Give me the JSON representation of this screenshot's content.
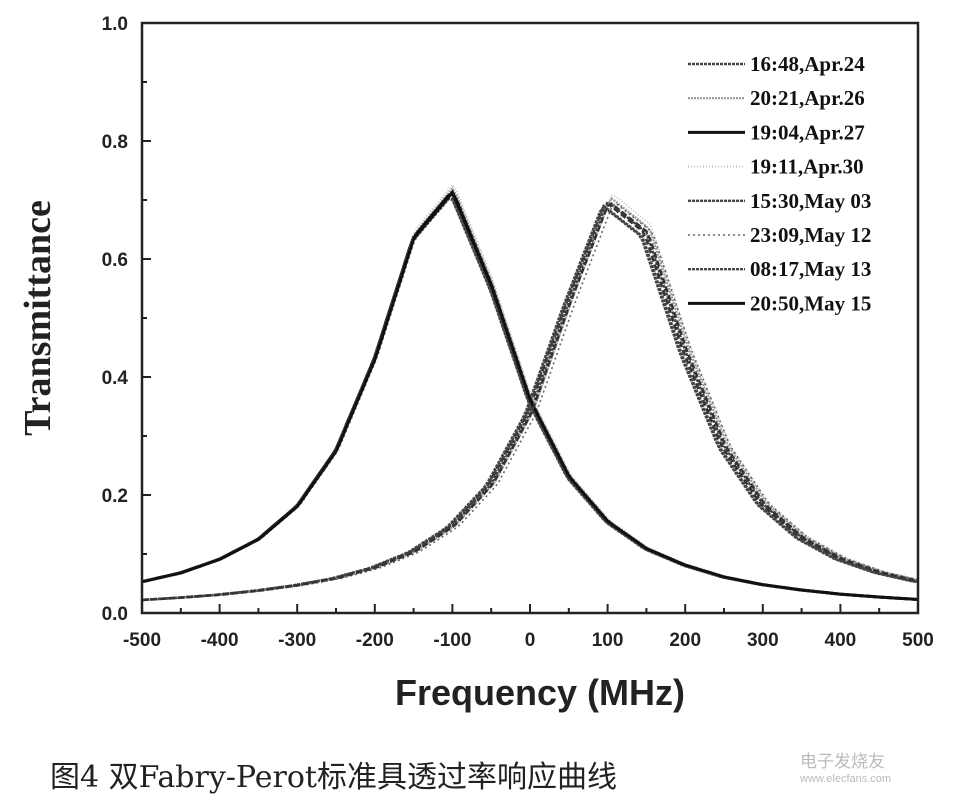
{
  "chart_data": {
    "type": "line",
    "title": "",
    "xlabel": "Frequency (MHz)",
    "ylabel": "Transmittance",
    "xlim": [
      -500,
      500
    ],
    "ylim": [
      0.0,
      1.0
    ],
    "xticks": [
      "-500",
      "-400",
      "-300",
      "-200",
      "-100",
      "0",
      "100",
      "200",
      "300",
      "400",
      "500"
    ],
    "yticks": [
      "0.0",
      "0.2",
      "0.4",
      "0.6",
      "0.8",
      "1.0"
    ],
    "grid": false,
    "legend_position": "top-right",
    "x": [
      -500,
      -450,
      -400,
      -350,
      -300,
      -250,
      -200,
      -150,
      -100,
      -50,
      0,
      50,
      100,
      150,
      200,
      250,
      300,
      350,
      400,
      450,
      500
    ],
    "left_peak_base": [
      0.053,
      0.068,
      0.091,
      0.125,
      0.181,
      0.275,
      0.431,
      0.636,
      0.714,
      0.555,
      0.36,
      0.231,
      0.155,
      0.109,
      0.081,
      0.061,
      0.048,
      0.039,
      0.032,
      0.027,
      0.023
    ],
    "right_peak_base": [
      0.022,
      0.026,
      0.031,
      0.038,
      0.047,
      0.059,
      0.077,
      0.104,
      0.147,
      0.218,
      0.339,
      0.526,
      0.697,
      0.645,
      0.445,
      0.283,
      0.185,
      0.128,
      0.092,
      0.069,
      0.054
    ],
    "series": [
      {
        "name": "16:48,Apr.24",
        "style": "wavy",
        "shift_mhz": 0,
        "scale": 1.0
      },
      {
        "name": "20:21,Apr.26",
        "style": "wavy-light",
        "shift_mhz": 4,
        "scale": 1.01
      },
      {
        "name": "19:04,Apr.27",
        "style": "solid-thick",
        "shift_mhz": -3,
        "scale": 1.0
      },
      {
        "name": "19:11,Apr.30",
        "style": "dotted-light",
        "shift_mhz": 6,
        "scale": 1.02
      },
      {
        "name": "15:30,May 03",
        "style": "wavy",
        "shift_mhz": -5,
        "scale": 0.99
      },
      {
        "name": "23:09,May 12",
        "style": "dotted",
        "shift_mhz": 8,
        "scale": 1.0
      },
      {
        "name": "08:17,May 13",
        "style": "wavy",
        "shift_mhz": -7,
        "scale": 0.99
      },
      {
        "name": "20:50,May 15",
        "style": "solid-thick",
        "shift_mhz": 2,
        "scale": 1.0
      }
    ]
  },
  "caption": "图4 双Fabry-Perot标准具透过率响应曲线",
  "watermark": {
    "cn": "电子发烧友",
    "url": "www.elecfans.com"
  }
}
